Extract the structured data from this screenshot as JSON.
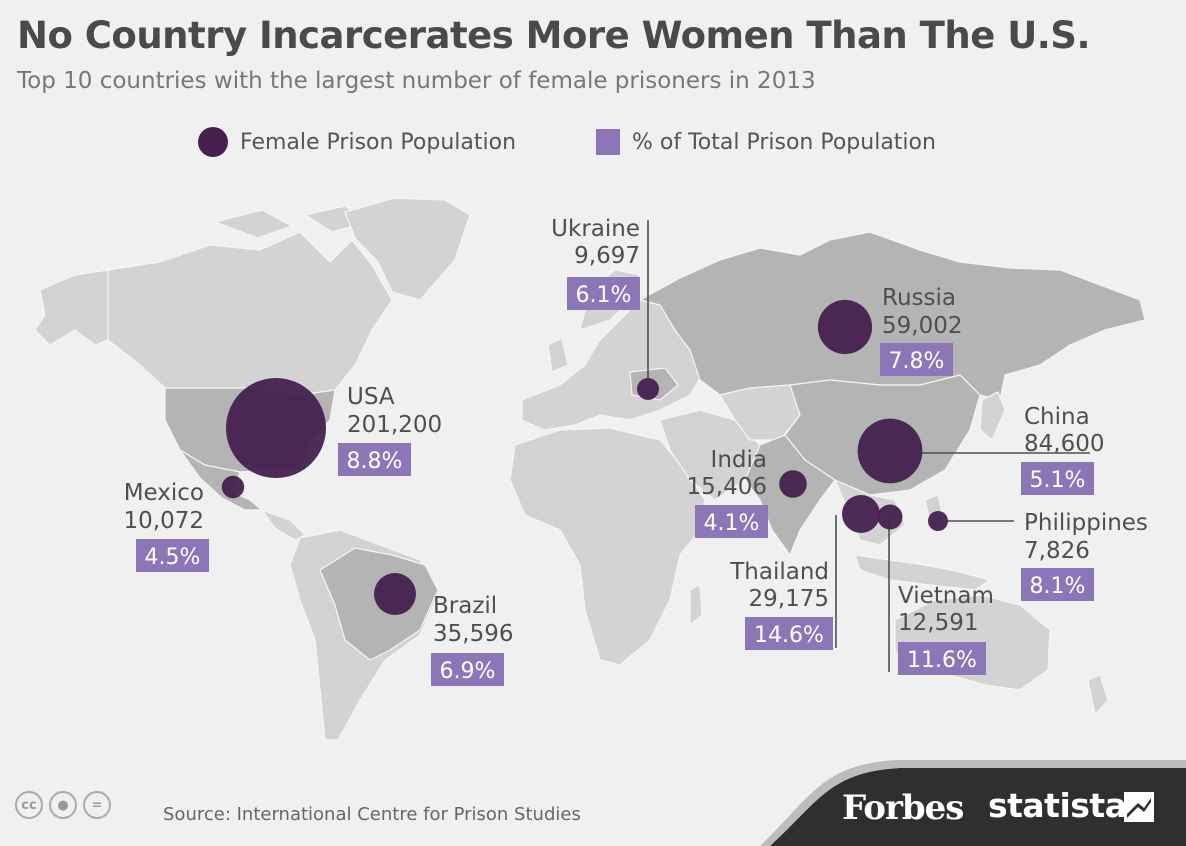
{
  "title": "No Country Incarcerates More Women Than The U.S.",
  "subtitle": "Top 10 countries with the largest number of female prisoners in 2013",
  "legend": {
    "circle_label": "Female Prison Population",
    "square_label": "% of Total Prison Population"
  },
  "colors": {
    "bubble": "#46204f",
    "percent_box": "#8c76b8",
    "land": "#d3d3d3",
    "land_highlight": "#b4b4b4",
    "background": "#f0f0f0"
  },
  "countries": [
    {
      "name": "USA",
      "value": "201,200",
      "percent": "8.8%"
    },
    {
      "name": "Mexico",
      "value": "10,072",
      "percent": "4.5%"
    },
    {
      "name": "Brazil",
      "value": "35,596",
      "percent": "6.9%"
    },
    {
      "name": "Ukraine",
      "value": "9,697",
      "percent": "6.1%"
    },
    {
      "name": "Russia",
      "value": "59,002",
      "percent": "7.8%"
    },
    {
      "name": "China",
      "value": "84,600",
      "percent": "5.1%"
    },
    {
      "name": "India",
      "value": "15,406",
      "percent": "4.1%"
    },
    {
      "name": "Thailand",
      "value": "29,175",
      "percent": "14.6%"
    },
    {
      "name": "Vietnam",
      "value": "12,591",
      "percent": "11.6%"
    },
    {
      "name": "Philippines",
      "value": "7,826",
      "percent": "8.1%"
    }
  ],
  "footer": {
    "source": "Source: International Centre for Prison Studies",
    "brand1": "Forbes",
    "brand2": "statista",
    "cc_icons": [
      "cc-icon",
      "by-icon",
      "nd-icon"
    ]
  }
}
